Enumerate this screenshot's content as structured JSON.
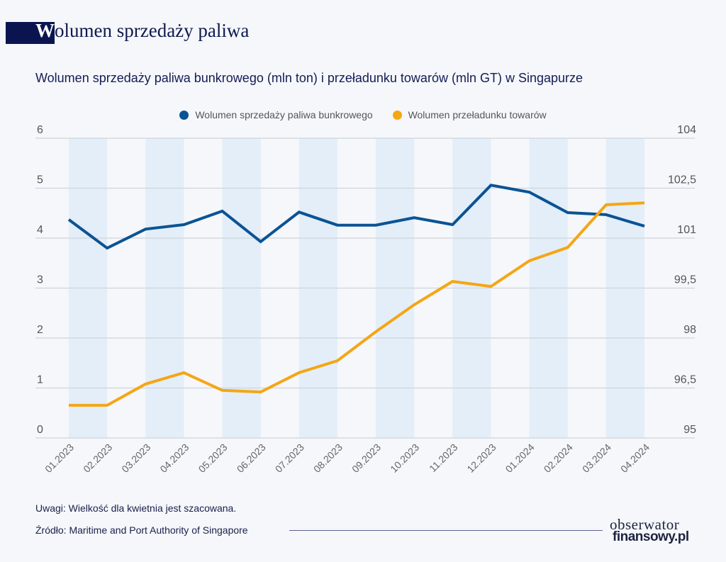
{
  "header": {
    "title_first_letter": "W",
    "title_rest": "olumen sprzedaży paliwa"
  },
  "chart_data": {
    "type": "line",
    "title": "Wolumen sprzedaży paliwa bunkrowego (mln ton) i przeładunku towarów (mln GT) w Singapurze",
    "categories": [
      "01.2023",
      "02.2023",
      "03.2023",
      "04.2023",
      "05.2023",
      "06.2023",
      "07.2023",
      "08.2023",
      "09.2023",
      "10.2023",
      "11.2023",
      "12.2023",
      "01.2024",
      "02.2024",
      "03.2024",
      "04.2024"
    ],
    "series": [
      {
        "name": "Wolumen sprzedaży paliwa bunkrowego",
        "axis": "left",
        "color": "#0b5394",
        "values": [
          4.37,
          3.8,
          4.18,
          4.27,
          4.54,
          3.93,
          4.52,
          4.26,
          4.26,
          4.41,
          4.27,
          5.06,
          4.92,
          4.51,
          4.47,
          4.24
        ]
      },
      {
        "name": "Wolumen przeładunku towarów",
        "axis": "right",
        "color": "#f5a614",
        "values": [
          95.98,
          95.98,
          96.62,
          96.96,
          96.43,
          96.38,
          96.96,
          97.32,
          98.19,
          99.0,
          99.7,
          99.55,
          100.32,
          100.72,
          102.0,
          102.06
        ]
      }
    ],
    "y_left": {
      "ylim": [
        0,
        6
      ],
      "ticks": [
        "0",
        "1",
        "2",
        "3",
        "4",
        "5",
        "6"
      ]
    },
    "y_right": {
      "ylim": [
        95,
        104
      ],
      "ticks": [
        "95",
        "96,5",
        "98",
        "99,5",
        "101",
        "102,5",
        "104"
      ]
    },
    "grid": true,
    "legend": "top-center",
    "band_color": "#e3eef8"
  },
  "footer": {
    "note": "Uwagi: Wielkość dla kwietnia jest szacowana.",
    "source": "Źródło: Maritime and Port Authority of Singapore"
  },
  "logo": {
    "line1": "obserwator",
    "line2": "finansowy.pl"
  }
}
